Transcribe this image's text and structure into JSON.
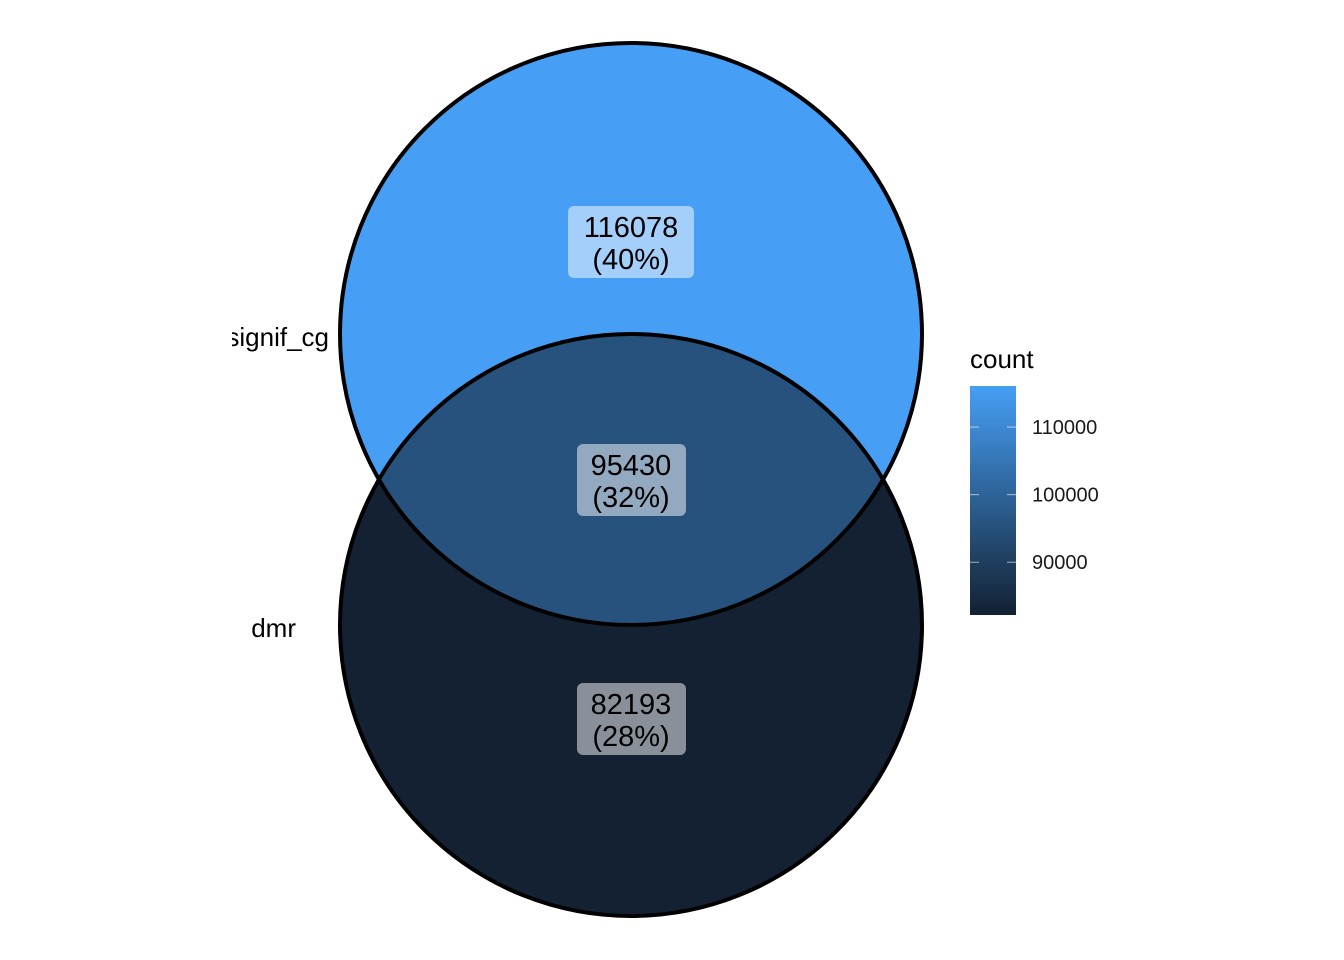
{
  "chart_data": {
    "type": "venn",
    "sets": [
      "signif_cg",
      "dmr"
    ],
    "regions": [
      {
        "sets": [
          "signif_cg"
        ],
        "count": 116078,
        "percent_label": "(40%)"
      },
      {
        "sets": [
          "signif_cg",
          "dmr"
        ],
        "count": 95430,
        "percent_label": "(32%)"
      },
      {
        "sets": [
          "dmr"
        ],
        "count": 82193,
        "percent_label": "(28%)"
      }
    ],
    "legend": {
      "title": "count",
      "ticks": [
        90000,
        100000,
        110000
      ],
      "range": [
        82193,
        116078
      ],
      "color_low": "#132132",
      "color_high": "#469FF5",
      "placement": "right"
    },
    "colors": {
      "outline": "#000000",
      "label_box": "#ffffff"
    }
  }
}
